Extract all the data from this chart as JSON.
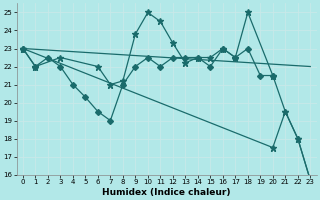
{
  "xlabel": "Humidex (Indice chaleur)",
  "xlim": [
    -0.5,
    23.5
  ],
  "ylim": [
    16,
    25.5
  ],
  "xticks": [
    0,
    1,
    2,
    3,
    4,
    5,
    6,
    7,
    8,
    9,
    10,
    11,
    12,
    13,
    14,
    15,
    16,
    17,
    18,
    19,
    20,
    21,
    22,
    23
  ],
  "yticks": [
    16,
    17,
    18,
    19,
    20,
    21,
    22,
    23,
    24,
    25
  ],
  "bg_color": "#b2e8e8",
  "grid_color": "#c8e8e8",
  "line_color": "#1a6b6b",
  "lines": [
    {
      "x": [
        0,
        1,
        3,
        6,
        7,
        8,
        9,
        10,
        11,
        12,
        13,
        14,
        15,
        16,
        17,
        18,
        20,
        21,
        22,
        23
      ],
      "y": [
        23,
        22,
        22.5,
        22,
        21,
        21.2,
        23.8,
        25,
        24.5,
        23.3,
        22.2,
        22.5,
        22.5,
        23,
        22.5,
        25,
        21.5,
        19.5,
        18.0,
        15.7
      ],
      "marker": "*",
      "markersize": 5
    },
    {
      "x": [
        0,
        23
      ],
      "y": [
        23,
        22
      ],
      "marker": null,
      "markersize": 0
    },
    {
      "x": [
        0,
        1,
        2,
        3,
        4,
        5,
        6,
        7,
        8,
        9,
        10,
        11,
        12,
        13,
        14,
        15,
        16,
        17,
        18,
        19,
        20
      ],
      "y": [
        23,
        22,
        22.5,
        22,
        21,
        20.3,
        19.5,
        19,
        21,
        22,
        22.5,
        22,
        22.5,
        22.5,
        22.5,
        22,
        23,
        22.5,
        23,
        21.5,
        21.5
      ],
      "marker": "D",
      "markersize": 3
    },
    {
      "x": [
        0,
        20,
        21,
        22,
        23
      ],
      "y": [
        23,
        17.5,
        19.5,
        18,
        15.7
      ],
      "marker": "*",
      "markersize": 5
    }
  ]
}
